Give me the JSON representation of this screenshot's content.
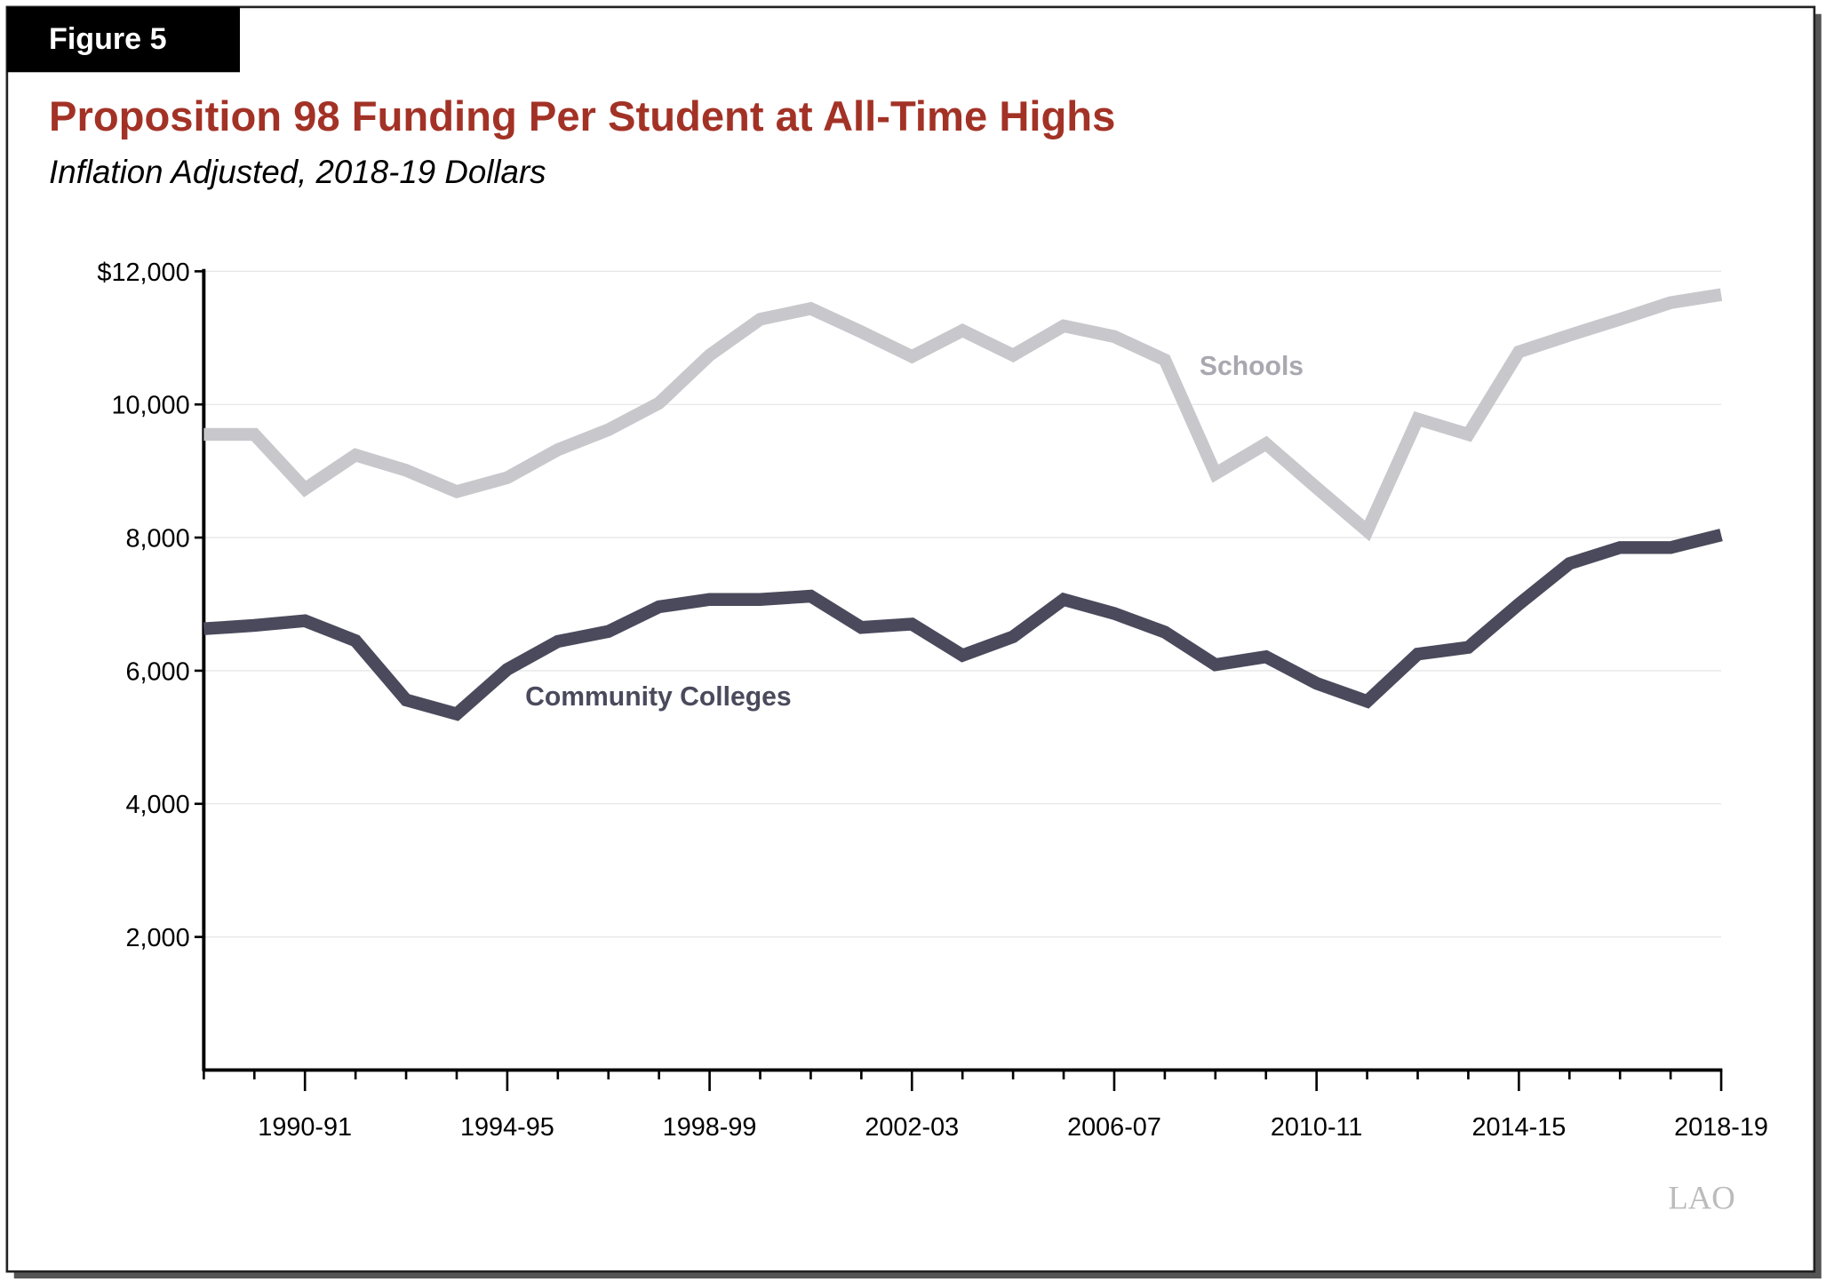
{
  "figure_label": "Figure 5",
  "logo": "LAO",
  "chart_data": {
    "type": "line",
    "title": "Proposition 98 Funding Per Student at All-Time Highs",
    "subtitle": "Inflation Adjusted, 2018-19 Dollars",
    "categories": [
      null,
      null,
      "1990-91",
      null,
      null,
      null,
      "1994-95",
      null,
      null,
      null,
      "1998-99",
      null,
      null,
      null,
      "2002-03",
      null,
      null,
      null,
      "2006-07",
      null,
      null,
      null,
      "2010-11",
      null,
      null,
      null,
      "2014-15",
      null,
      null,
      null,
      "2018-19"
    ],
    "series": [
      {
        "name": "Schools",
        "color": "#c8c7cc",
        "values": [
          9550,
          9550,
          8730,
          9240,
          9010,
          8690,
          8900,
          9320,
          9620,
          10020,
          10740,
          11280,
          11440,
          11090,
          10720,
          11110,
          10740,
          11180,
          11020,
          10670,
          8960,
          9410,
          8750,
          8100,
          9780,
          9550,
          10790,
          11040,
          11280,
          11530,
          11650
        ]
      },
      {
        "name": "Community Colleges",
        "color": "#4a4a5c",
        "values": [
          6630,
          6680,
          6750,
          6450,
          5560,
          5350,
          6020,
          6440,
          6590,
          6960,
          7070,
          7070,
          7120,
          6650,
          6700,
          6230,
          6510,
          7070,
          6860,
          6580,
          6090,
          6210,
          5810,
          5540,
          6250,
          6350,
          7000,
          7610,
          7850,
          7850,
          8040
        ]
      }
    ],
    "ylim": [
      0,
      12000
    ],
    "yticks": [
      {
        "value": 2000,
        "label": "2,000"
      },
      {
        "value": 4000,
        "label": "4,000"
      },
      {
        "value": 6000,
        "label": "6,000"
      },
      {
        "value": 8000,
        "label": "8,000"
      },
      {
        "value": 10000,
        "label": "10,000"
      },
      {
        "value": 12000,
        "label": "$12,000"
      }
    ],
    "grid": true
  }
}
